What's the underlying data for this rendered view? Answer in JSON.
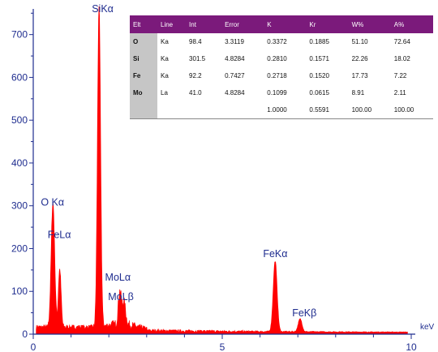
{
  "chart_data": {
    "type": "line",
    "x_unit": "keV",
    "xlim": [
      0,
      10
    ],
    "ylim": [
      0,
      760
    ],
    "x_ticks": [
      "0",
      "5",
      "10"
    ],
    "y_ticks": [
      "0",
      "100",
      "200",
      "300",
      "400",
      "500",
      "600",
      "700"
    ],
    "colors": {
      "spectrum": "#ff0000",
      "axis": "#1f2d8f",
      "label": "#1f2d8f",
      "table_header": "#7b1a7b",
      "table_elt_col": "#c6c6c6"
    },
    "peaks": [
      {
        "label": "O Kα",
        "x": 0.52,
        "y": 290,
        "width": 0.045
      },
      {
        "label": "FeLα",
        "x": 0.7,
        "y": 135,
        "width": 0.035
      },
      {
        "label": "SiKα",
        "x": 1.74,
        "y": 745,
        "width": 0.04
      },
      {
        "label": "MoLα",
        "x": 2.29,
        "y": 75,
        "width": 0.04
      },
      {
        "label": "MoLβ",
        "x": 2.4,
        "y": 50,
        "width": 0.045
      },
      {
        "label": "FeKα",
        "x": 6.4,
        "y": 165,
        "width": 0.05
      },
      {
        "label": "FeKβ",
        "x": 7.06,
        "y": 30,
        "width": 0.05
      }
    ],
    "peak_labels": [
      {
        "text": "SiKα",
        "x": 1.55,
        "y": 752
      },
      {
        "text": "O Kα",
        "x": 0.2,
        "y": 300
      },
      {
        "text": "FeLα",
        "x": 0.38,
        "y": 225
      },
      {
        "text": "MoLα",
        "x": 1.9,
        "y": 125
      },
      {
        "text": "MoLβ",
        "x": 1.98,
        "y": 80
      },
      {
        "text": "FeKα",
        "x": 6.08,
        "y": 180
      },
      {
        "text": "FeKβ",
        "x": 6.85,
        "y": 42
      }
    ],
    "table": {
      "columns": [
        "Elt",
        "Line",
        "Int",
        "Error",
        "K",
        "Kr",
        "W%",
        "A%"
      ],
      "rows": [
        [
          "O",
          "Ka",
          "98.4",
          "3.3119",
          "0.3372",
          "0.1885",
          "51.10",
          "72.64"
        ],
        [
          "Si",
          "Ka",
          "301.5",
          "4.8284",
          "0.2810",
          "0.1571",
          "22.26",
          "18.02"
        ],
        [
          "Fe",
          "Ka",
          "92.2",
          "0.7427",
          "0.2718",
          "0.1520",
          "17.73",
          "7.22"
        ],
        [
          "Mo",
          "La",
          "41.0",
          "4.8284",
          "0.1099",
          "0.0615",
          "8.91",
          "2.11"
        ],
        [
          "",
          "",
          "",
          "",
          "1.0000",
          "0.5591",
          "100.00",
          "100.00"
        ]
      ]
    }
  }
}
